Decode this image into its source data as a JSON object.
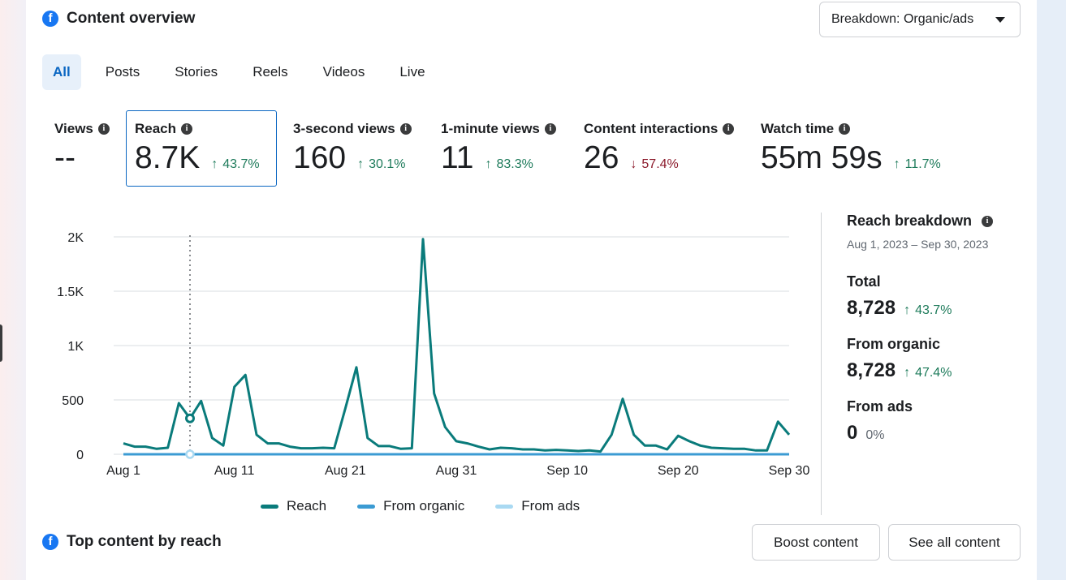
{
  "header": {
    "title": "Content overview",
    "breakdown_label": "Breakdown: Organic/ads"
  },
  "tabs": [
    {
      "label": "All",
      "active": true
    },
    {
      "label": "Posts"
    },
    {
      "label": "Stories"
    },
    {
      "label": "Reels"
    },
    {
      "label": "Videos"
    },
    {
      "label": "Live"
    }
  ],
  "metrics": [
    {
      "label": "Views",
      "value": "--",
      "delta": "",
      "direction": "none"
    },
    {
      "label": "Reach",
      "value": "8.7K",
      "delta": "43.7%",
      "direction": "up",
      "selected": true
    },
    {
      "label": "3-second views",
      "value": "160",
      "delta": "30.1%",
      "direction": "up"
    },
    {
      "label": "1-minute views",
      "value": "11",
      "delta": "83.3%",
      "direction": "up"
    },
    {
      "label": "Content interactions",
      "value": "26",
      "delta": "57.4%",
      "direction": "down"
    },
    {
      "label": "Watch time",
      "value": "55m 59s",
      "delta": "11.7%",
      "direction": "up"
    }
  ],
  "chart_data": {
    "type": "line",
    "x": [
      "Aug 1",
      "Aug 2",
      "Aug 3",
      "Aug 4",
      "Aug 5",
      "Aug 6",
      "Aug 7",
      "Aug 8",
      "Aug 9",
      "Aug 10",
      "Aug 11",
      "Aug 12",
      "Aug 13",
      "Aug 14",
      "Aug 15",
      "Aug 16",
      "Aug 17",
      "Aug 18",
      "Aug 19",
      "Aug 20",
      "Aug 21",
      "Aug 22",
      "Aug 23",
      "Aug 24",
      "Aug 25",
      "Aug 26",
      "Aug 27",
      "Aug 28",
      "Aug 29",
      "Aug 30",
      "Aug 31",
      "Sep 1",
      "Sep 2",
      "Sep 3",
      "Sep 4",
      "Sep 5",
      "Sep 6",
      "Sep 7",
      "Sep 8",
      "Sep 9",
      "Sep 10",
      "Sep 11",
      "Sep 12",
      "Sep 13",
      "Sep 14",
      "Sep 15",
      "Sep 16",
      "Sep 17",
      "Sep 18",
      "Sep 19",
      "Sep 20",
      "Sep 21",
      "Sep 22",
      "Sep 23",
      "Sep 24",
      "Sep 25",
      "Sep 26",
      "Sep 27",
      "Sep 28",
      "Sep 29",
      "Sep 30"
    ],
    "x_ticks": [
      "Aug 1",
      "Aug 11",
      "Aug 21",
      "Aug 31",
      "Sep 10",
      "Sep 20",
      "Sep 30"
    ],
    "y_ticks": [
      "0",
      "500",
      "1K",
      "1.5K",
      "2K"
    ],
    "ylim": [
      0,
      2000
    ],
    "series": [
      {
        "name": "Reach",
        "color": "#0a7b7b",
        "values": [
          100,
          70,
          70,
          50,
          60,
          470,
          330,
          490,
          150,
          80,
          620,
          730,
          180,
          100,
          100,
          70,
          55,
          55,
          60,
          55,
          420,
          800,
          150,
          75,
          75,
          50,
          55,
          1980,
          560,
          250,
          120,
          100,
          70,
          45,
          60,
          55,
          45,
          45,
          35,
          40,
          35,
          30,
          35,
          25,
          180,
          510,
          180,
          80,
          80,
          45,
          170,
          120,
          80,
          60,
          55,
          50,
          50,
          35,
          35,
          300,
          180
        ]
      },
      {
        "name": "From organic",
        "color": "#3b9bd3",
        "values": [
          0,
          0,
          0,
          0,
          0,
          0,
          0,
          0,
          0,
          0,
          0,
          0,
          0,
          0,
          0,
          0,
          0,
          0,
          0,
          0,
          0,
          0,
          0,
          0,
          0,
          0,
          0,
          0,
          0,
          0,
          0,
          0,
          0,
          0,
          0,
          0,
          0,
          0,
          0,
          0,
          0,
          0,
          0,
          0,
          0,
          0,
          0,
          0,
          0,
          0,
          0,
          0,
          0,
          0,
          0,
          0,
          0,
          0,
          0,
          0,
          0
        ]
      },
      {
        "name": "From ads",
        "color": "#a9d9f2",
        "values": [
          0,
          0,
          0,
          0,
          0,
          0,
          0,
          0,
          0,
          0,
          0,
          0,
          0,
          0,
          0,
          0,
          0,
          0,
          0,
          0,
          0,
          0,
          0,
          0,
          0,
          0,
          0,
          0,
          0,
          0,
          0,
          0,
          0,
          0,
          0,
          0,
          0,
          0,
          0,
          0,
          0,
          0,
          0,
          0,
          0,
          0,
          0,
          0,
          0,
          0,
          0,
          0,
          0,
          0,
          0,
          0,
          0,
          0,
          0,
          0,
          0
        ]
      }
    ],
    "highlight_index": 6
  },
  "breakdown": {
    "title": "Reach breakdown",
    "date_range": "Aug 1, 2023 – Sep 30, 2023",
    "items": [
      {
        "label": "Total",
        "value": "8,728",
        "delta": "43.7%",
        "direction": "up"
      },
      {
        "label": "From organic",
        "value": "8,728",
        "delta": "47.4%",
        "direction": "up"
      },
      {
        "label": "From ads",
        "value": "0",
        "delta": "0%",
        "direction": "none"
      }
    ]
  },
  "top_content": {
    "title": "Top content by reach",
    "boost_label": "Boost content",
    "see_all_label": "See all content"
  }
}
